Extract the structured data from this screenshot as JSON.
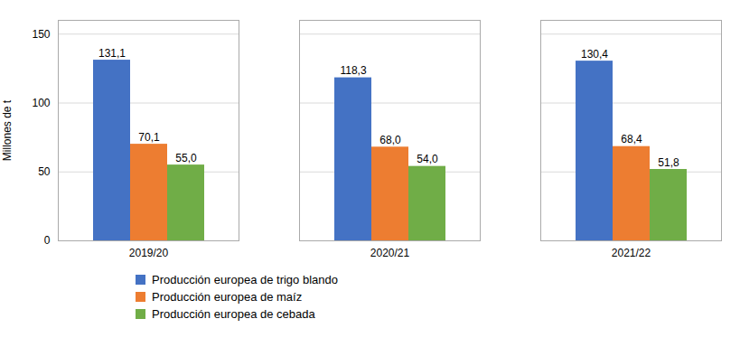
{
  "chart_data": {
    "type": "bar",
    "ylabel": "Millones de t",
    "categories": [
      "2019/20",
      "2020/21",
      "2021/22"
    ],
    "series": [
      {
        "name": "Producción europea de trigo blando",
        "color": "#4472C4",
        "values": [
          131.1,
          118.3,
          130.4
        ],
        "value_labels": [
          "131,1",
          "118,3",
          "130,4"
        ]
      },
      {
        "name": "Producción europea de maíz",
        "color": "#ED7D31",
        "values": [
          70.1,
          68.0,
          68.4
        ],
        "value_labels": [
          "70,1",
          "68,0",
          "68,4"
        ]
      },
      {
        "name": "Producción europea de cebada",
        "color": "#70AD47",
        "values": [
          55.0,
          54.0,
          51.8
        ],
        "value_labels": [
          "55,0",
          "54,0",
          "51,8"
        ]
      }
    ],
    "ylim": [
      0,
      160
    ],
    "yticks": [
      0,
      50,
      100,
      150
    ],
    "grid": true,
    "data_labels": true,
    "legend": "bottom"
  }
}
